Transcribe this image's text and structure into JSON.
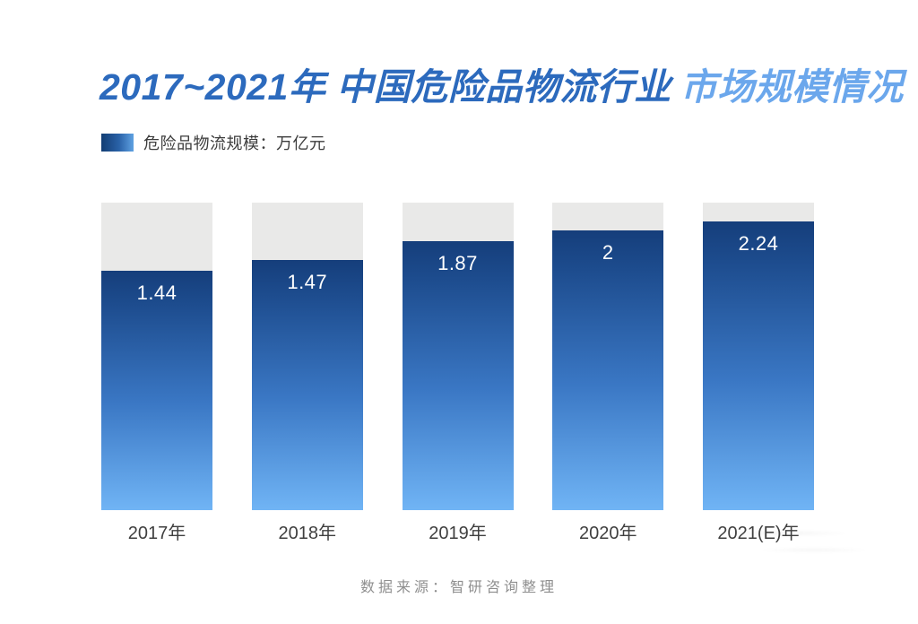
{
  "title": {
    "part1": "2017~2021年 中国危险品物流行业",
    "part2": "市场规模情况"
  },
  "legend": {
    "label": "危险品物流规模：万亿元"
  },
  "chart_data": {
    "type": "bar",
    "title": "2017~2021年 中国危险品物流行业 市场规模情况",
    "categories": [
      "2017年",
      "2018年",
      "2019年",
      "2020年",
      "2021(E)年"
    ],
    "values": [
      1.44,
      1.47,
      1.87,
      2,
      2.24
    ],
    "value_labels": [
      "1.44",
      "1.47",
      "1.87",
      "2",
      "2.24"
    ],
    "series_name": "危险品物流规模",
    "unit": "万亿元",
    "xlabel": "",
    "ylabel": "",
    "grid": false,
    "legend_position": "top-left",
    "bar_height_pct": [
      77.8,
      81.3,
      87.5,
      91.0,
      93.9
    ],
    "colors": {
      "bar_gradient_top": "#153E7B",
      "bar_gradient_bottom": "#70B4F5",
      "track_background": "#E9E9E8",
      "title_primary": "#2C6ABD",
      "title_accent": "#6BA7EC",
      "value_label": "#FFFFFF",
      "axis_label": "#3F3F3F",
      "source_text": "#8F8F8F"
    }
  },
  "footer": {
    "source": "数据来源：智研咨询整理"
  }
}
